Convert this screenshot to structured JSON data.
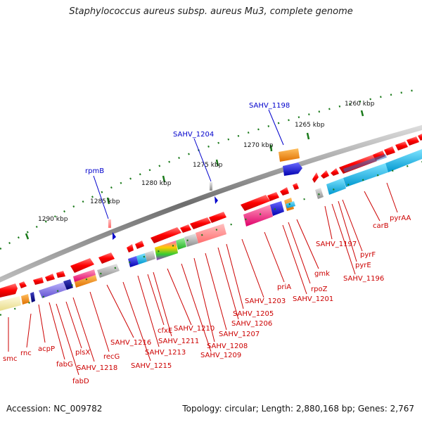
{
  "title": "Staphylococcus aureus subsp. aureus Mu3, complete genome",
  "accession": "Accession: NC_009782",
  "summary": "Topology: circular; Length: 2,880,168 bp; Genes: 2,767",
  "colors": {
    "backbone": "#8a8a8a",
    "gene_red": "#ff0000",
    "label_red": "#cc0000",
    "label_blue": "#0000cc",
    "scale_green": "#1a7a1a"
  },
  "scale_labels": [
    {
      "id": "1290",
      "text": "1290 kbp"
    },
    {
      "id": "1285",
      "text": "1285 kbp"
    },
    {
      "id": "1280",
      "text": "1280 kbp"
    },
    {
      "id": "1275",
      "text": "1275 kbp"
    },
    {
      "id": "1270",
      "text": "1270 kbp"
    },
    {
      "id": "1265",
      "text": "1265 kbp"
    },
    {
      "id": "1260",
      "text": "1260 kbp"
    }
  ],
  "top_genes": [
    {
      "id": "rpmB",
      "text": "rpmB"
    },
    {
      "id": "SAHV_1204",
      "text": "SAHV_1204"
    },
    {
      "id": "SAHV_1198",
      "text": "SAHV_1198"
    }
  ],
  "bottom_genes": [
    {
      "id": "smc",
      "text": "smc"
    },
    {
      "id": "rnc",
      "text": "rnc"
    },
    {
      "id": "acpP",
      "text": "acpP"
    },
    {
      "id": "fabG",
      "text": "fabG"
    },
    {
      "id": "fabD",
      "text": "fabD"
    },
    {
      "id": "plsX",
      "text": "plsX"
    },
    {
      "id": "SAHV_1218",
      "text": "SAHV_1218"
    },
    {
      "id": "recG",
      "text": "recG"
    },
    {
      "id": "SAHV_1216",
      "text": "SAHV_1216"
    },
    {
      "id": "SAHV_1215",
      "text": "SAHV_1215"
    },
    {
      "id": "SAHV_1213",
      "text": "SAHV_1213"
    },
    {
      "id": "cfxE",
      "text": "cfxE"
    },
    {
      "id": "SAHV_1211",
      "text": "SAHV_1211"
    },
    {
      "id": "SAHV_1210",
      "text": "SAHV_1210"
    },
    {
      "id": "SAHV_1209",
      "text": "SAHV_1209"
    },
    {
      "id": "SAHV_1208",
      "text": "SAHV_1208"
    },
    {
      "id": "SAHV_1207",
      "text": "SAHV_1207"
    },
    {
      "id": "SAHV_1206",
      "text": "SAHV_1206"
    },
    {
      "id": "SAHV_1205",
      "text": "SAHV_1205"
    },
    {
      "id": "SAHV_1203",
      "text": "SAHV_1203"
    },
    {
      "id": "priA",
      "text": "priA"
    },
    {
      "id": "SAHV_1201",
      "text": "SAHV_1201"
    },
    {
      "id": "rpoZ",
      "text": "rpoZ"
    },
    {
      "id": "gmk",
      "text": "gmk"
    },
    {
      "id": "SAHV_1197",
      "text": "SAHV_1197"
    },
    {
      "id": "SAHV_1196",
      "text": "SAHV_1196"
    },
    {
      "id": "pyrE",
      "text": "pyrE"
    },
    {
      "id": "pyrF",
      "text": "pyrF"
    },
    {
      "id": "carB",
      "text": "carB"
    },
    {
      "id": "pyrAA",
      "text": "pyrAA"
    }
  ]
}
